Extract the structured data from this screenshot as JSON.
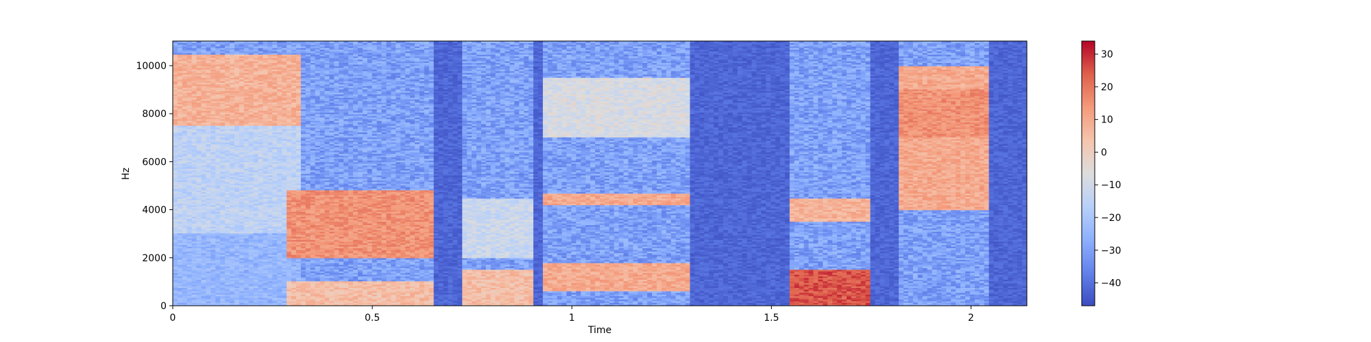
{
  "chart_data": {
    "type": "heatmap",
    "title": "",
    "xlabel": "Time",
    "ylabel": "Hz",
    "xlim": [
      0,
      2.14
    ],
    "ylim": [
      0,
      11025
    ],
    "x_ticks": [
      0,
      0.5,
      1,
      1.5,
      2
    ],
    "x_tick_labels": [
      "0",
      "0.5",
      "1",
      "1.5",
      "2"
    ],
    "y_ticks": [
      0,
      2000,
      4000,
      6000,
      8000,
      10000
    ],
    "y_tick_labels": [
      "0",
      "2000",
      "4000",
      "6000",
      "8000",
      "10000"
    ],
    "colorbar": {
      "colormap": "coolwarm",
      "range": [
        -47,
        34
      ],
      "ticks": [
        -40,
        -30,
        -20,
        -10,
        0,
        10,
        20,
        30
      ],
      "tick_labels": [
        "−40",
        "−30",
        "−20",
        "−10",
        "0",
        "10",
        "20",
        "30"
      ]
    },
    "grid": false,
    "segments": [
      {
        "t_start": 0.0,
        "t_end": 0.32,
        "bands": [
          {
            "f_low": 7500,
            "f_high": 10500,
            "level_db": 8
          },
          {
            "f_low": 3000,
            "f_high": 7500,
            "level_db": -15
          },
          {
            "f_low": 0,
            "f_high": 3000,
            "level_db": -25
          }
        ]
      },
      {
        "t_start": 0.28,
        "t_end": 0.65,
        "bands": [
          {
            "f_low": 2000,
            "f_high": 4800,
            "level_db": 15
          },
          {
            "f_low": 0,
            "f_high": 1000,
            "level_db": 5
          }
        ]
      },
      {
        "t_start": 0.72,
        "t_end": 0.9,
        "bands": [
          {
            "f_low": 0,
            "f_high": 1500,
            "level_db": 5
          },
          {
            "f_low": 2000,
            "f_high": 4500,
            "level_db": -12
          }
        ]
      },
      {
        "t_start": 0.93,
        "t_end": 1.3,
        "bands": [
          {
            "f_low": 4200,
            "f_high": 4700,
            "level_db": 10
          },
          {
            "f_low": 600,
            "f_high": 1800,
            "level_db": 10
          },
          {
            "f_low": 7000,
            "f_high": 9500,
            "level_db": -8
          }
        ]
      },
      {
        "t_start": 1.55,
        "t_end": 1.75,
        "bands": [
          {
            "f_low": 0,
            "f_high": 1500,
            "level_db": 25
          },
          {
            "f_low": 3500,
            "f_high": 4500,
            "level_db": 8
          }
        ]
      },
      {
        "t_start": 1.82,
        "t_end": 2.05,
        "bands": [
          {
            "f_low": 4000,
            "f_high": 10000,
            "level_db": 10
          },
          {
            "f_low": 7000,
            "f_high": 9000,
            "level_db": 15
          }
        ]
      }
    ],
    "background_level_db": -42
  }
}
